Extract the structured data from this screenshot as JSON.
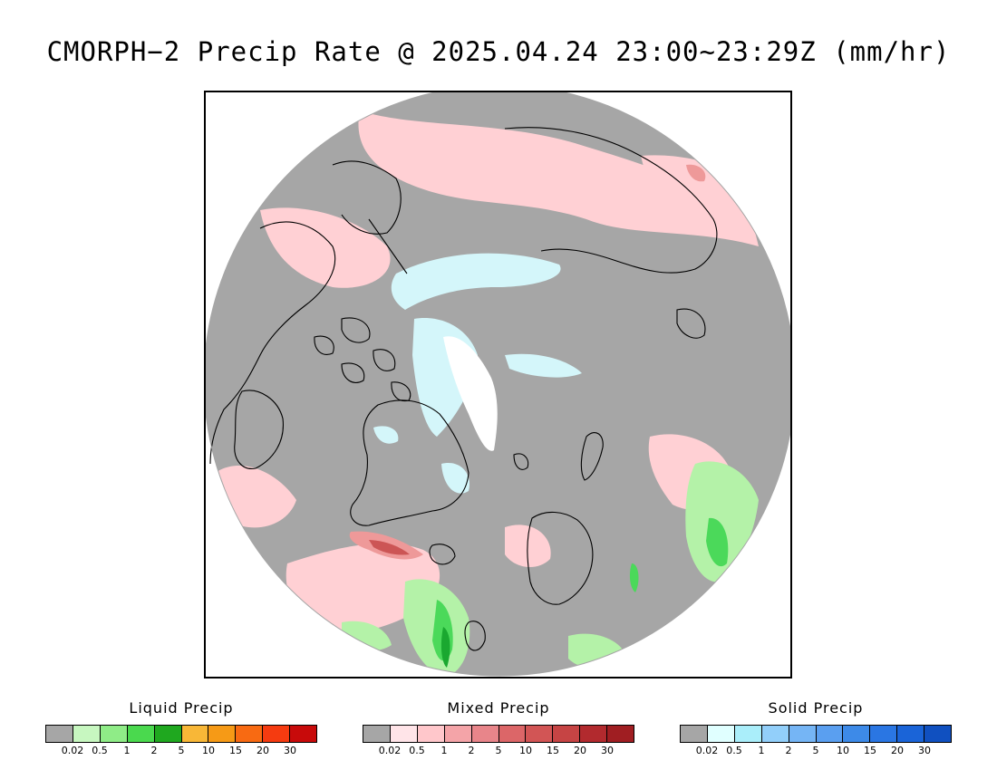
{
  "title": "CMORPH−2 Precip Rate @ 2025.04.24 23:00~23:29Z (mm/hr)",
  "map": {
    "projection": "north-polar-stereographic",
    "colors": {
      "no_precip": "#a6a6a6",
      "missing": "#ffffff",
      "mixed_light": "#ffd0d4",
      "mixed_medium": "#ee9999",
      "mixed_heavy": "#cc5555",
      "liquid_light": "#b4f2a8",
      "liquid_medium": "#4bd95a",
      "liquid_heavy": "#1aa830",
      "solid_light": "#d4f6fa",
      "coastline": "#000000"
    }
  },
  "legends": [
    {
      "title": "Liquid Precip",
      "colors": [
        "#a6a6a6",
        "#c7f7c0",
        "#8fec87",
        "#4ad94e",
        "#1fa81f",
        "#f8b737",
        "#f69a16",
        "#f86a12",
        "#f53b10",
        "#c80a0a"
      ],
      "ticks": [
        "0.02",
        "0.5",
        "1",
        "2",
        "5",
        "10",
        "15",
        "20",
        "30"
      ]
    },
    {
      "title": "Mixed Precip",
      "colors": [
        "#a6a6a6",
        "#ffe4e8",
        "#ffc7cb",
        "#f4a4a8",
        "#e8858a",
        "#dc6668",
        "#d25555",
        "#c64444",
        "#b22a2e",
        "#a01e22"
      ],
      "ticks": [
        "0.02",
        "0.5",
        "1",
        "2",
        "5",
        "10",
        "15",
        "20",
        "30"
      ]
    },
    {
      "title": "Solid Precip",
      "colors": [
        "#a6a6a6",
        "#e0ffff",
        "#aaeefa",
        "#92cffa",
        "#75b5f5",
        "#5a9ff0",
        "#3d8ae8",
        "#2a76e3",
        "#1a64d8",
        "#1050c0"
      ],
      "ticks": [
        "0.02",
        "0.5",
        "1",
        "2",
        "5",
        "10",
        "15",
        "20",
        "30"
      ]
    }
  ]
}
